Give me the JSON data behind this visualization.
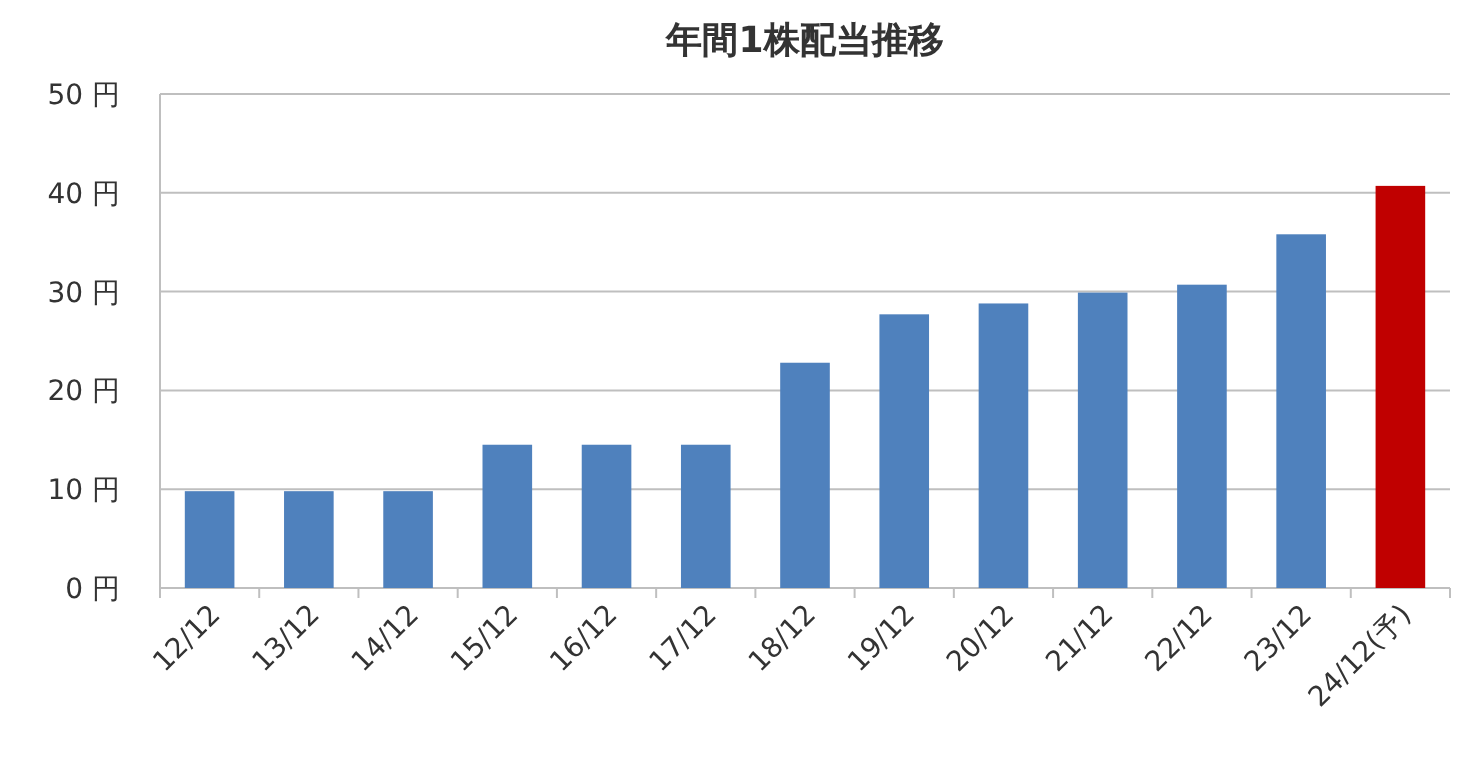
{
  "chart_data": {
    "type": "bar",
    "title": "年間1株配当推移",
    "categories": [
      "12/12",
      "13/12",
      "14/12",
      "15/12",
      "16/12",
      "17/12",
      "18/12",
      "19/12",
      "20/12",
      "21/12",
      "22/12",
      "23/12",
      "24/12(予)"
    ],
    "values": [
      9.8,
      9.8,
      9.8,
      14.5,
      14.5,
      14.5,
      22.8,
      27.7,
      28.8,
      29.9,
      30.7,
      35.8,
      40.7
    ],
    "colors": [
      "#4f81bd",
      "#4f81bd",
      "#4f81bd",
      "#4f81bd",
      "#4f81bd",
      "#4f81bd",
      "#4f81bd",
      "#4f81bd",
      "#4f81bd",
      "#4f81bd",
      "#4f81bd",
      "#4f81bd",
      "#c00000"
    ],
    "ylim": [
      0,
      50
    ],
    "yticks": [
      {
        "value": 0,
        "label": "0 円"
      },
      {
        "value": 10,
        "label": "10 円"
      },
      {
        "value": 20,
        "label": "20 円"
      },
      {
        "value": 30,
        "label": "30 円"
      },
      {
        "value": 40,
        "label": "40 円"
      },
      {
        "value": 50,
        "label": "50 円"
      }
    ],
    "grid": "y"
  }
}
